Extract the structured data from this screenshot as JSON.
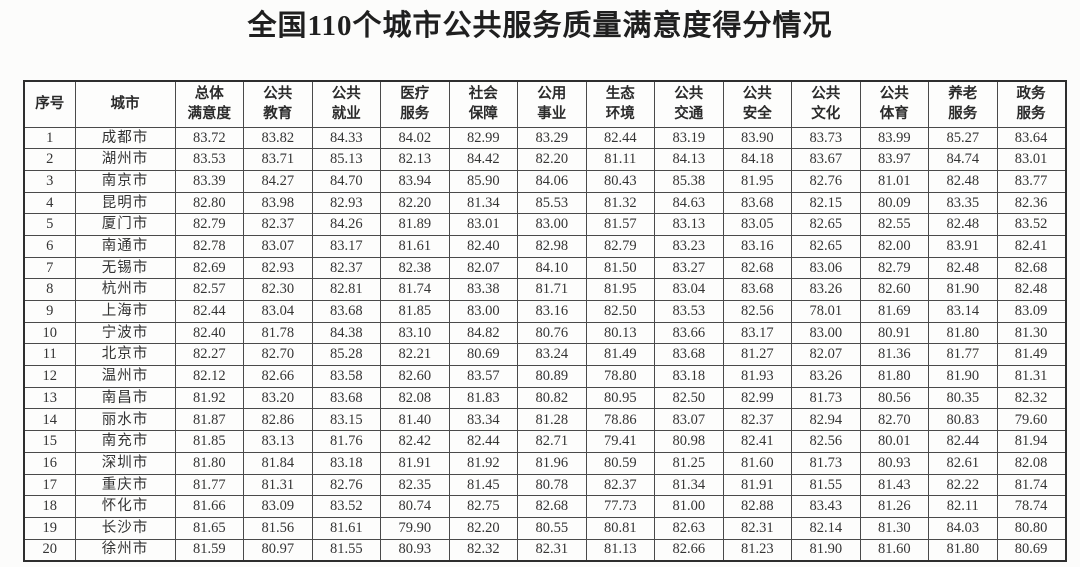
{
  "title": "全国110个城市公共服务质量满意度得分情况",
  "table": {
    "headers": [
      "序号",
      "城市",
      "总体\n满意度",
      "公共\n教育",
      "公共\n就业",
      "医疗\n服务",
      "社会\n保障",
      "公用\n事业",
      "生态\n环境",
      "公共\n交通",
      "公共\n安全",
      "公共\n文化",
      "公共\n体育",
      "养老\n服务",
      "政务\n服务"
    ],
    "rows": [
      [
        "1",
        "成都市",
        "83.72",
        "83.82",
        "84.33",
        "84.02",
        "82.99",
        "83.29",
        "82.44",
        "83.19",
        "83.90",
        "83.73",
        "83.99",
        "85.27",
        "83.64"
      ],
      [
        "2",
        "湖州市",
        "83.53",
        "83.71",
        "85.13",
        "82.13",
        "84.42",
        "82.20",
        "81.11",
        "84.13",
        "84.18",
        "83.67",
        "83.97",
        "84.74",
        "83.01"
      ],
      [
        "3",
        "南京市",
        "83.39",
        "84.27",
        "84.70",
        "83.94",
        "85.90",
        "84.06",
        "80.43",
        "85.38",
        "81.95",
        "82.76",
        "81.01",
        "82.48",
        "83.77"
      ],
      [
        "4",
        "昆明市",
        "82.80",
        "83.98",
        "82.93",
        "82.20",
        "81.34",
        "85.53",
        "81.32",
        "84.63",
        "83.68",
        "82.15",
        "80.09",
        "83.35",
        "82.36"
      ],
      [
        "5",
        "厦门市",
        "82.79",
        "82.37",
        "84.26",
        "81.89",
        "83.01",
        "83.00",
        "81.57",
        "83.13",
        "83.05",
        "82.65",
        "82.55",
        "82.48",
        "83.52"
      ],
      [
        "6",
        "南通市",
        "82.78",
        "83.07",
        "83.17",
        "81.61",
        "82.40",
        "82.98",
        "82.79",
        "83.23",
        "83.16",
        "82.65",
        "82.00",
        "83.91",
        "82.41"
      ],
      [
        "7",
        "无锡市",
        "82.69",
        "82.93",
        "82.37",
        "82.38",
        "82.07",
        "84.10",
        "81.50",
        "83.27",
        "82.68",
        "83.06",
        "82.79",
        "82.48",
        "82.68"
      ],
      [
        "8",
        "杭州市",
        "82.57",
        "82.30",
        "82.81",
        "81.74",
        "83.38",
        "81.71",
        "81.95",
        "83.04",
        "83.68",
        "83.26",
        "82.60",
        "81.90",
        "82.48"
      ],
      [
        "9",
        "上海市",
        "82.44",
        "83.04",
        "83.68",
        "81.85",
        "83.00",
        "83.16",
        "82.50",
        "83.53",
        "82.56",
        "78.01",
        "81.69",
        "83.14",
        "83.09"
      ],
      [
        "10",
        "宁波市",
        "82.40",
        "81.78",
        "84.38",
        "83.10",
        "84.82",
        "80.76",
        "80.13",
        "83.66",
        "83.17",
        "83.00",
        "80.91",
        "81.80",
        "81.30"
      ],
      [
        "11",
        "北京市",
        "82.27",
        "82.70",
        "85.28",
        "82.21",
        "80.69",
        "83.24",
        "81.49",
        "83.68",
        "81.27",
        "82.07",
        "81.36",
        "81.77",
        "81.49"
      ],
      [
        "12",
        "温州市",
        "82.12",
        "82.66",
        "83.58",
        "82.60",
        "83.57",
        "80.89",
        "78.80",
        "83.18",
        "81.93",
        "83.26",
        "81.80",
        "81.90",
        "81.31"
      ],
      [
        "13",
        "南昌市",
        "81.92",
        "83.20",
        "83.68",
        "82.08",
        "81.83",
        "80.82",
        "80.95",
        "82.50",
        "82.99",
        "81.73",
        "80.56",
        "80.35",
        "82.32"
      ],
      [
        "14",
        "丽水市",
        "81.87",
        "82.86",
        "83.15",
        "81.40",
        "83.34",
        "81.28",
        "78.86",
        "83.07",
        "82.37",
        "82.94",
        "82.70",
        "80.83",
        "79.60"
      ],
      [
        "15",
        "南充市",
        "81.85",
        "83.13",
        "81.76",
        "82.42",
        "82.44",
        "82.71",
        "79.41",
        "80.98",
        "82.41",
        "82.56",
        "80.01",
        "82.44",
        "81.94"
      ],
      [
        "16",
        "深圳市",
        "81.80",
        "81.84",
        "83.18",
        "81.91",
        "81.92",
        "81.96",
        "80.59",
        "81.25",
        "81.60",
        "81.73",
        "80.93",
        "82.61",
        "82.08"
      ],
      [
        "17",
        "重庆市",
        "81.77",
        "81.31",
        "82.76",
        "82.35",
        "81.45",
        "80.78",
        "82.37",
        "81.34",
        "81.91",
        "81.55",
        "81.43",
        "82.22",
        "81.74"
      ],
      [
        "18",
        "怀化市",
        "81.66",
        "83.09",
        "83.52",
        "80.74",
        "82.75",
        "82.68",
        "77.73",
        "81.00",
        "82.88",
        "83.43",
        "81.26",
        "82.11",
        "78.74"
      ],
      [
        "19",
        "长沙市",
        "81.65",
        "81.56",
        "81.61",
        "79.90",
        "82.20",
        "80.55",
        "80.81",
        "82.63",
        "82.31",
        "82.14",
        "81.30",
        "84.03",
        "80.80"
      ],
      [
        "20",
        "徐州市",
        "81.59",
        "80.97",
        "81.55",
        "80.93",
        "82.32",
        "82.31",
        "81.13",
        "82.66",
        "81.23",
        "81.90",
        "81.60",
        "81.80",
        "80.69"
      ]
    ]
  }
}
